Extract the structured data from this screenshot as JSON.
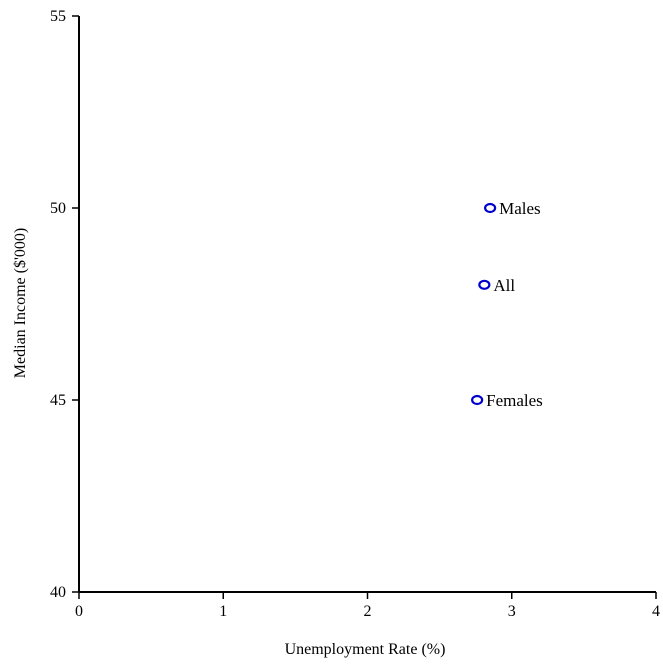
{
  "chart_data": {
    "type": "scatter",
    "title": "",
    "xlabel": "Unemployment Rate (%)",
    "ylabel": "Median Income ($'000)",
    "xlim": [
      0,
      4
    ],
    "ylim": [
      40,
      55
    ],
    "xticks": [
      0,
      1,
      2,
      3,
      4
    ],
    "yticks": [
      40,
      45,
      50,
      55
    ],
    "grid": false,
    "legend": "none",
    "marker_color": "#0000cc",
    "points": [
      {
        "label": "Males",
        "x": 2.85,
        "y": 50
      },
      {
        "label": "All",
        "x": 2.81,
        "y": 48
      },
      {
        "label": "Females",
        "x": 2.76,
        "y": 45
      }
    ]
  }
}
